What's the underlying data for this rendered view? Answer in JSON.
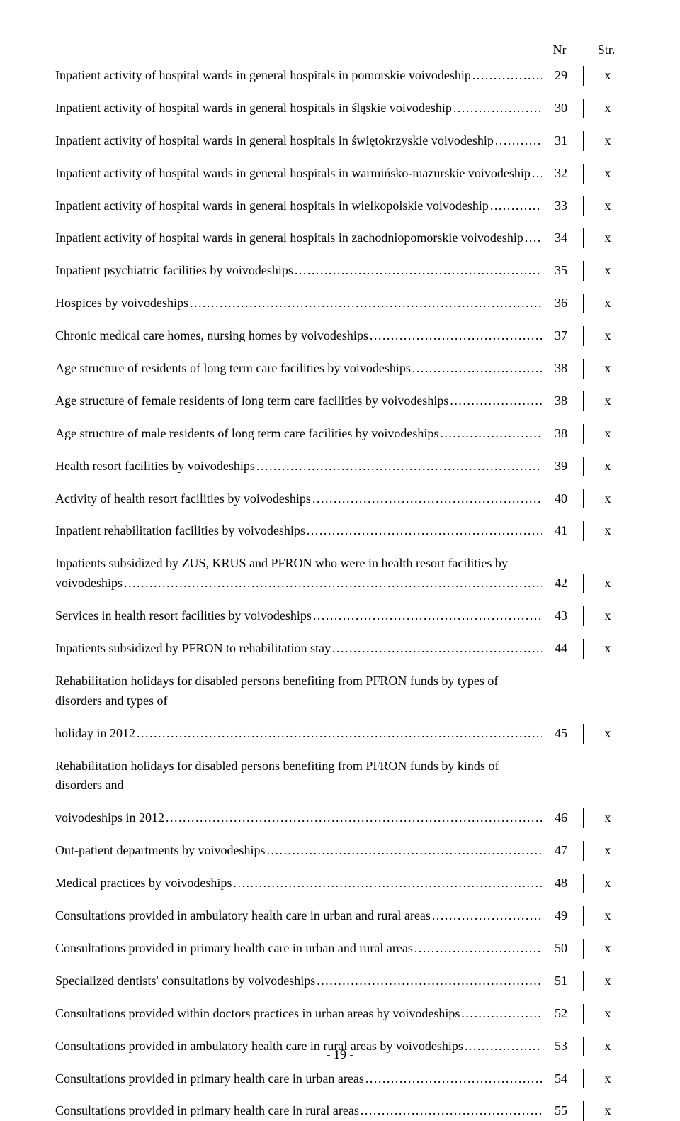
{
  "header": {
    "nr": "Nr",
    "str": "Str."
  },
  "entries": [
    {
      "title": "Inpatient activity of hospital wards in general hospitals in pomorskie voivodeship",
      "nr": "29",
      "str": "x"
    },
    {
      "title": "Inpatient activity of hospital wards in general hospitals in śląskie voivodeship",
      "nr": "30",
      "str": "x"
    },
    {
      "title": "Inpatient activity of hospital wards in general hospitals in świętokrzyskie voivodeship",
      "nr": "31",
      "str": "x"
    },
    {
      "title": "Inpatient activity of hospital wards in general hospitals in warmińsko-mazurskie voivodeship",
      "nr": "32",
      "str": "x"
    },
    {
      "title": "Inpatient activity of hospital wards in general hospitals in wielkopolskie voivodeship",
      "nr": "33",
      "str": "x"
    },
    {
      "title": "Inpatient activity of hospital wards in general hospitals in zachodniopomorskie voivodeship",
      "nr": "34",
      "str": "x"
    },
    {
      "title": "Inpatient psychiatric facilities by voivodeships",
      "nr": "35",
      "str": "x"
    },
    {
      "title": "Hospices by voivodeships",
      "nr": "36",
      "str": "x"
    },
    {
      "title": "Chronic medical care homes, nursing homes by voivodeships",
      "nr": "37",
      "str": "x"
    },
    {
      "title": "Age structure of residents  of long term care facilities by voivodeships",
      "nr": "38",
      "str": "x"
    },
    {
      "title": "Age structure of female residents of long term care facilities by voivodeships",
      "nr": "38",
      "str": "x"
    },
    {
      "title": "Age structure of male residents of long term care facilities by voivodeships",
      "nr": "38",
      "str": "x"
    },
    {
      "title": "Health resort facilities by voivodeships",
      "nr": "39",
      "str": "x"
    },
    {
      "title": "Activity of health resort facilities by voivodeships",
      "nr": "40",
      "str": "x"
    },
    {
      "title": "Inpatient rehabilitation facilities by voivodeships",
      "nr": "41",
      "str": "x"
    },
    {
      "title": "Inpatients subsidized by ZUS, KRUS and PFRON who were in health resort facilities by voivodeships",
      "nr": "42",
      "str": "x"
    },
    {
      "title": "Services in health resort facilities by voivodeships",
      "nr": "43",
      "str": "x"
    },
    {
      "title": "Inpatients subsidized by PFRON to rehabilitation stay",
      "nr": "44",
      "str": "x"
    },
    {
      "line1": "Rehabilitation holidays for disabled persons benefiting from PFRON funds by types of disorders and  types of",
      "line2": "holiday in 2012",
      "nr": "45",
      "str": "x"
    },
    {
      "line1": "Rehabilitation holidays for disabled persons benefiting from PFRON funds by kinds of disorders and",
      "line2": "voivodeships in 2012",
      "nr": "46",
      "str": "x"
    },
    {
      "title": "Out-patient departments  by voivodeships",
      "nr": "47",
      "str": "x"
    },
    {
      "title": "Medical practices by voivodeships",
      "nr": "48",
      "str": "x"
    },
    {
      "title": "Consultations provided in ambulatory health care in urban and rural areas",
      "nr": "49",
      "str": "x"
    },
    {
      "title": "Consultations provided in primary health care in urban and rural areas",
      "nr": "50",
      "str": "x"
    },
    {
      "title": "Specialized dentists' consultations by voivodeships",
      "nr": "51",
      "str": "x"
    },
    {
      "title": "Consultations provided within doctors practices in urban areas  by voivodeships",
      "nr": "52",
      "str": "x"
    },
    {
      "title": "Consultations provided in ambulatory health care in rural areas by voivodeships",
      "nr": "53",
      "str": "x"
    },
    {
      "title": "Consultations provided in primary health care in urban areas",
      "nr": "54",
      "str": "x"
    },
    {
      "title": "Consultations provided in primary health care in rural areas",
      "nr": "55",
      "str": "x"
    }
  ],
  "pageNumber": "- 19 -"
}
